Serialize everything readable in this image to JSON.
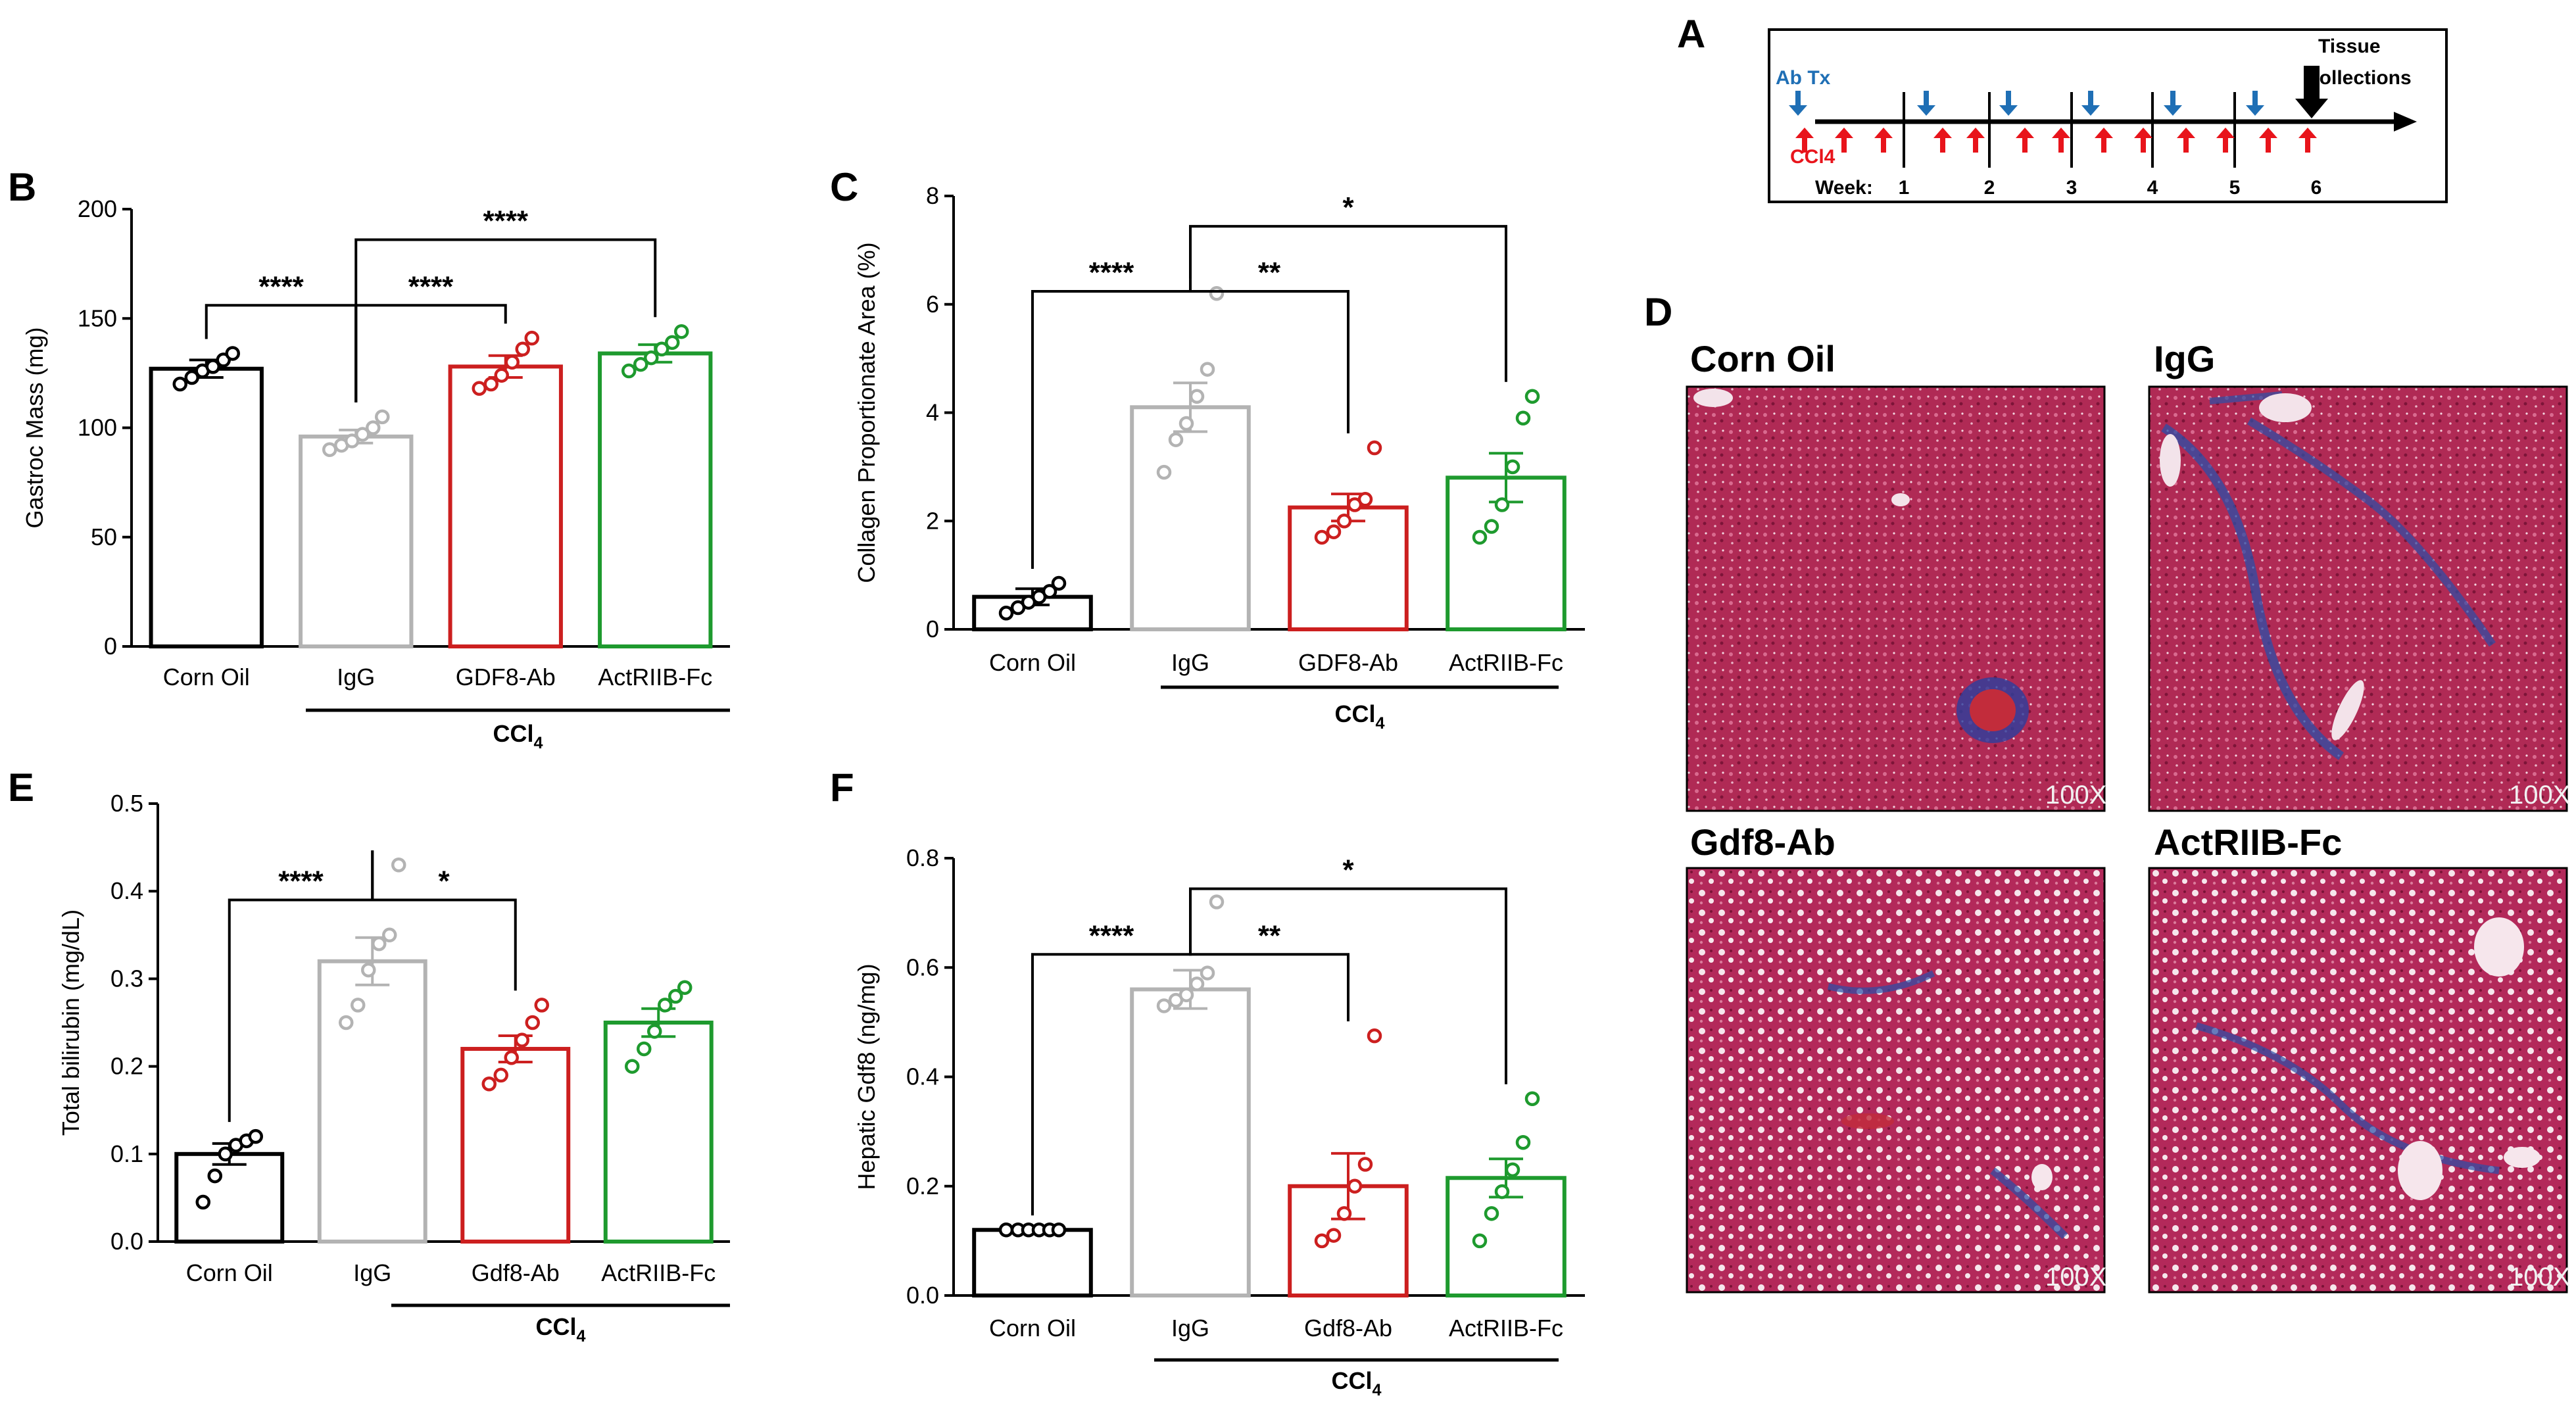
{
  "panel_letters": {
    "A": "A",
    "B": "B",
    "C": "C",
    "D": "D",
    "E": "E",
    "F": "F"
  },
  "colors": {
    "corn_oil": "#000000",
    "igg": "#b3b3b3",
    "gdf8": "#cc1f1f",
    "actriib": "#1e9a2e",
    "ab_arrow": "#1f6fb5",
    "ccl4_arrow": "#e8141b"
  },
  "chart_data": [
    {
      "id": "B",
      "type": "bar",
      "title": "",
      "categories": [
        "Corn Oil",
        "IgG",
        "GDF8-Ab",
        "ActRIIB-Fc"
      ],
      "values": [
        127,
        96,
        128,
        134
      ],
      "sem": [
        4,
        3,
        5,
        4
      ],
      "points": [
        [
          120,
          123,
          126,
          128,
          131,
          134
        ],
        [
          90,
          92,
          94,
          97,
          100,
          105
        ],
        [
          118,
          120,
          124,
          130,
          136,
          141
        ],
        [
          126,
          129,
          132,
          136,
          139,
          144
        ]
      ],
      "ylabel": "Gastroc Mass (mg)",
      "ylim": [
        0,
        200
      ],
      "yticks": [
        0,
        50,
        100,
        150,
        200
      ],
      "group_label": "CCl4",
      "significance": [
        {
          "from": 0,
          "to": 1,
          "label": "****"
        },
        {
          "from": 1,
          "to": 2,
          "label": "****"
        },
        {
          "from": 1,
          "to": 3,
          "label": "****"
        }
      ]
    },
    {
      "id": "C",
      "type": "bar",
      "title": "",
      "categories": [
        "Corn Oil",
        "IgG",
        "GDF8-Ab",
        "ActRIIB-Fc"
      ],
      "values": [
        0.6,
        4.1,
        2.25,
        2.8
      ],
      "sem": [
        0.15,
        0.45,
        0.25,
        0.45
      ],
      "points": [
        [
          0.3,
          0.4,
          0.5,
          0.6,
          0.7,
          0.85
        ],
        [
          2.9,
          3.5,
          3.8,
          4.3,
          4.8,
          6.2
        ],
        [
          1.7,
          1.8,
          2.0,
          2.3,
          2.4,
          3.35
        ],
        [
          1.7,
          1.9,
          2.3,
          3.0,
          3.9,
          4.3
        ]
      ],
      "ylabel": "Collagen Proportionate Area  (%)",
      "ylim": [
        0,
        8
      ],
      "yticks": [
        0,
        2,
        4,
        6,
        8
      ],
      "group_label": "CCl4",
      "significance": [
        {
          "from": 0,
          "to": 1,
          "label": "****"
        },
        {
          "from": 1,
          "to": 2,
          "label": "**"
        },
        {
          "from": 1,
          "to": 3,
          "label": "*"
        }
      ]
    },
    {
      "id": "E",
      "type": "bar",
      "title": "",
      "categories": [
        "Corn Oil",
        "IgG",
        "Gdf8-Ab",
        "ActRIIB-Fc"
      ],
      "values": [
        0.1,
        0.32,
        0.22,
        0.25
      ],
      "sem": [
        0.012,
        0.027,
        0.015,
        0.016
      ],
      "points": [
        [
          0.045,
          0.075,
          0.1,
          0.11,
          0.115,
          0.12
        ],
        [
          0.25,
          0.27,
          0.31,
          0.34,
          0.35,
          0.43
        ],
        [
          0.18,
          0.19,
          0.21,
          0.23,
          0.25,
          0.27
        ],
        [
          0.2,
          0.22,
          0.24,
          0.27,
          0.28,
          0.29
        ]
      ],
      "ylabel": "Total bilirubin (mg/dL)",
      "ylim": [
        0,
        0.5
      ],
      "yticks": [
        0.0,
        0.1,
        0.2,
        0.3,
        0.4,
        0.5
      ],
      "group_label": "CCl4",
      "significance": [
        {
          "from": 0,
          "to": 1,
          "label": "****"
        },
        {
          "from": 1,
          "to": 2,
          "label": "*"
        }
      ]
    },
    {
      "id": "F",
      "type": "bar",
      "title": "",
      "categories": [
        "Corn Oil",
        "IgG",
        "Gdf8-Ab",
        "ActRIIB-Fc"
      ],
      "values": [
        0.12,
        0.56,
        0.2,
        0.215
      ],
      "sem": [
        0.0,
        0.035,
        0.06,
        0.035
      ],
      "points": [
        [
          0.12,
          0.12,
          0.12,
          0.12,
          0.12,
          0.12
        ],
        [
          0.53,
          0.54,
          0.55,
          0.57,
          0.59,
          0.72
        ],
        [
          0.1,
          0.11,
          0.15,
          0.2,
          0.24,
          0.475
        ],
        [
          0.1,
          0.15,
          0.19,
          0.23,
          0.28,
          0.36
        ]
      ],
      "ylabel": "Hepatic Gdf8 (ng/mg)",
      "ylim": [
        0,
        0.8
      ],
      "yticks": [
        0.0,
        0.2,
        0.4,
        0.6,
        0.8
      ],
      "group_label": "CCl4",
      "significance": [
        {
          "from": 0,
          "to": 1,
          "label": "****"
        },
        {
          "from": 1,
          "to": 2,
          "label": "**"
        },
        {
          "from": 1,
          "to": 3,
          "label": "*"
        }
      ]
    }
  ],
  "timeline": {
    "ab_label": "Ab Tx",
    "ccl4_label": "CCl4",
    "week_label": "Week:",
    "weeks": [
      "1",
      "2",
      "3",
      "4",
      "5",
      "6"
    ],
    "end_label_line1": "Tissue",
    "end_label_line2": "Collections"
  },
  "histology": {
    "panels": [
      {
        "title": "Corn Oil",
        "magnification": "100X",
        "fibrosis": "low"
      },
      {
        "title": "IgG",
        "magnification": "100X",
        "fibrosis": "high"
      },
      {
        "title": "Gdf8-Ab",
        "magnification": "100X",
        "fibrosis": "medium"
      },
      {
        "title": "ActRIIB-Fc",
        "magnification": "100X",
        "fibrosis": "medium"
      }
    ]
  }
}
